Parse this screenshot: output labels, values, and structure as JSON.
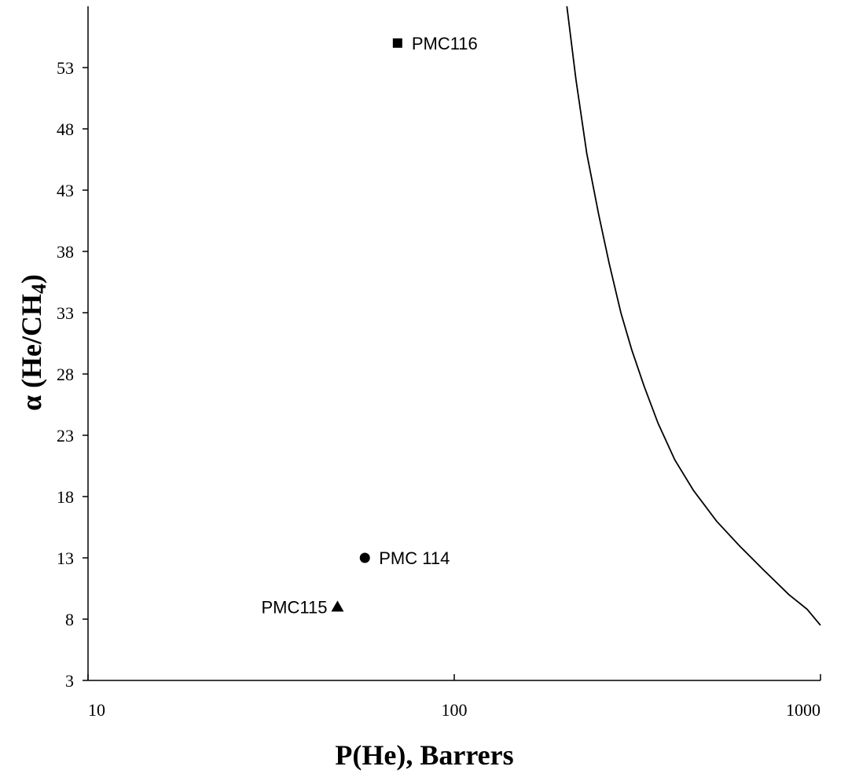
{
  "chart_data": {
    "type": "scatter",
    "title": "",
    "xlabel": "P(He), Barrers",
    "ylabel_main": "α (He/CH",
    "ylabel_sub": "4",
    "ylabel_end": ")",
    "xscale": "log",
    "xlim": [
      10,
      1000
    ],
    "ylim": [
      3,
      58
    ],
    "xticks": [
      10,
      100,
      1000
    ],
    "xtick_labels": [
      "10",
      "100",
      "1000"
    ],
    "yticks": [
      3,
      8,
      13,
      18,
      23,
      28,
      33,
      38,
      43,
      48,
      53
    ],
    "ytick_labels": [
      "3",
      "8",
      "13",
      "18",
      "23",
      "28",
      "33",
      "38",
      "43",
      "48",
      "53"
    ],
    "grid": false,
    "points": [
      {
        "label": "PMC116",
        "marker": "square",
        "x": 70,
        "y": 55,
        "label_side": "right"
      },
      {
        "label": "PMC 114",
        "marker": "circle",
        "x": 57,
        "y": 13,
        "label_side": "right"
      },
      {
        "label": "PMC115",
        "marker": "triangle",
        "x": 48,
        "y": 9,
        "label_side": "left"
      }
    ],
    "upper_bound_curve": {
      "x": [
        203,
        215,
        230,
        248,
        265,
        285,
        305,
        330,
        360,
        400,
        450,
        520,
        600,
        700,
        820,
        920,
        1000
      ],
      "y": [
        58,
        52,
        46,
        41,
        37,
        33,
        30,
        27,
        24,
        21,
        18.5,
        16,
        14,
        12,
        10,
        8.8,
        7.5
      ]
    }
  }
}
